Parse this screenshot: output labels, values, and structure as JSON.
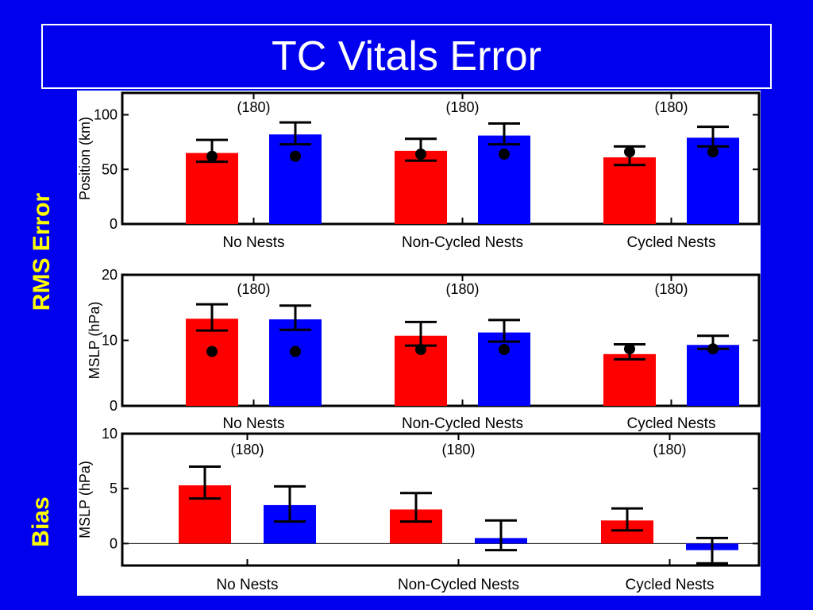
{
  "slide": {
    "title": "TC Vitals Error",
    "rms_label": "RMS Error",
    "bias_label": "Bias"
  },
  "colors": {
    "background": "#0000ee",
    "label_yellow": "#ffff00",
    "red_series": "#ff0000",
    "blue_series": "#0000ff"
  },
  "chart_data": [
    {
      "type": "bar",
      "group": "RMS Error",
      "ylabel": "Position (km)",
      "ylim": [
        0,
        120
      ],
      "yticks": [
        0,
        50,
        100
      ],
      "categories": [
        "No Nests",
        "Non-Cycled Nests",
        "Cycled Nests"
      ],
      "counts": [
        "(180)",
        "(180)",
        "(180)"
      ],
      "series": [
        {
          "color": "#ff0000",
          "values": [
            65,
            67,
            61
          ],
          "error_low": [
            57,
            58,
            54
          ],
          "error_high": [
            77,
            78,
            71
          ],
          "dots": [
            62,
            64,
            66
          ]
        },
        {
          "color": "#0000ff",
          "values": [
            82,
            81,
            79
          ],
          "error_low": [
            73,
            73,
            71
          ],
          "error_high": [
            93,
            92,
            89
          ],
          "dots": [
            62,
            64,
            66
          ]
        }
      ]
    },
    {
      "type": "bar",
      "group": "RMS Error",
      "ylabel": "MSLP (hPa)",
      "ylim": [
        0,
        20
      ],
      "yticks": [
        0,
        10,
        20
      ],
      "categories": [
        "No Nests",
        "Non-Cycled Nests",
        "Cycled Nests"
      ],
      "counts": [
        "(180)",
        "(180)",
        "(180)"
      ],
      "series": [
        {
          "color": "#ff0000",
          "values": [
            13.3,
            10.7,
            7.9
          ],
          "error_low": [
            11.5,
            9.2,
            7.1
          ],
          "error_high": [
            15.5,
            12.8,
            9.4
          ],
          "dots": [
            8.3,
            8.6,
            8.7
          ]
        },
        {
          "color": "#0000ff",
          "values": [
            13.2,
            11.2,
            9.3
          ],
          "error_low": [
            11.6,
            9.8,
            8.7
          ],
          "error_high": [
            15.3,
            13.1,
            10.7
          ],
          "dots": [
            8.3,
            8.6,
            8.7
          ]
        }
      ]
    },
    {
      "type": "bar",
      "group": "Bias",
      "ylabel": "MSLP (hPa)",
      "ylim": [
        -2,
        10
      ],
      "yticks": [
        0,
        5,
        10
      ],
      "zero_line": true,
      "categories": [
        "No Nests",
        "Non-Cycled Nests",
        "Cycled Nests"
      ],
      "counts": [
        "(180)",
        "(180)",
        "(180)"
      ],
      "series": [
        {
          "color": "#ff0000",
          "values": [
            5.3,
            3.1,
            2.1
          ],
          "error_low": [
            4.1,
            2.0,
            1.2
          ],
          "error_high": [
            7.0,
            4.6,
            3.2
          ]
        },
        {
          "color": "#0000ff",
          "values": [
            3.5,
            0.5,
            -0.6
          ],
          "error_low": [
            2.0,
            -0.6,
            -1.8
          ],
          "error_high": [
            5.2,
            2.1,
            0.5
          ]
        }
      ]
    }
  ]
}
